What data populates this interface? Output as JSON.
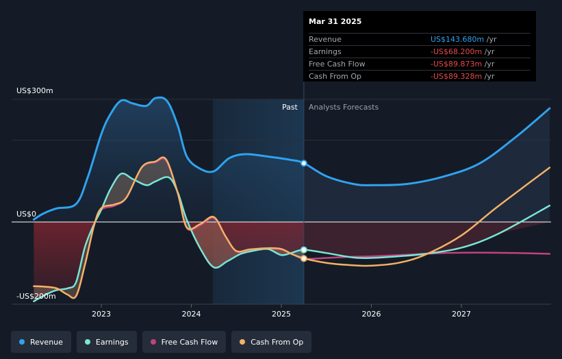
{
  "chart_data": {
    "type": "area",
    "y_unit_labels": [
      "US$300m",
      "US$0",
      "-US$200m"
    ],
    "ylim": [
      -200,
      300
    ],
    "xlim": [
      2022.25,
      2027.98
    ],
    "x_ticks": [
      {
        "value": 2023,
        "label": "2023"
      },
      {
        "value": 2024,
        "label": "2024"
      },
      {
        "value": 2025,
        "label": "2025"
      },
      {
        "value": 2026,
        "label": "2026"
      },
      {
        "value": 2027,
        "label": "2027"
      }
    ],
    "past_label": "Past",
    "forecast_label": "Analysts Forecasts",
    "past_start": 2024.24,
    "divider_x": 2025.25,
    "series": [
      {
        "name": "Revenue",
        "color": "#2fa3ef",
        "points": [
          [
            2022.25,
            6
          ],
          [
            2022.35,
            20
          ],
          [
            2022.5,
            33
          ],
          [
            2022.72,
            44
          ],
          [
            2022.85,
            110
          ],
          [
            2023.0,
            215
          ],
          [
            2023.1,
            263
          ],
          [
            2023.22,
            297
          ],
          [
            2023.35,
            290
          ],
          [
            2023.5,
            284
          ],
          [
            2023.6,
            303
          ],
          [
            2023.73,
            296
          ],
          [
            2023.85,
            235
          ],
          [
            2023.95,
            160
          ],
          [
            2024.1,
            130
          ],
          [
            2024.25,
            124
          ],
          [
            2024.42,
            156
          ],
          [
            2024.6,
            166
          ],
          [
            2024.85,
            160
          ],
          [
            2025.1,
            152
          ],
          [
            2025.25,
            144
          ],
          [
            2025.5,
            112
          ],
          [
            2025.8,
            93
          ],
          [
            2026.0,
            90
          ],
          [
            2026.4,
            93
          ],
          [
            2026.8,
            111
          ],
          [
            2027.2,
            143
          ],
          [
            2027.6,
            207
          ],
          [
            2027.98,
            278
          ]
        ]
      },
      {
        "name": "Earnings",
        "color": "#7ae5d6",
        "points": [
          [
            2022.25,
            -194
          ],
          [
            2022.38,
            -178
          ],
          [
            2022.5,
            -167
          ],
          [
            2022.63,
            -162
          ],
          [
            2022.72,
            -147
          ],
          [
            2022.82,
            -60
          ],
          [
            2022.92,
            -5
          ],
          [
            2023.0,
            30
          ],
          [
            2023.1,
            80
          ],
          [
            2023.22,
            118
          ],
          [
            2023.35,
            105
          ],
          [
            2023.5,
            90
          ],
          [
            2023.6,
            99
          ],
          [
            2023.75,
            109
          ],
          [
            2023.85,
            72
          ],
          [
            2023.95,
            5
          ],
          [
            2024.1,
            -65
          ],
          [
            2024.25,
            -111
          ],
          [
            2024.4,
            -96
          ],
          [
            2024.55,
            -78
          ],
          [
            2024.7,
            -70
          ],
          [
            2024.85,
            -66
          ],
          [
            2025.0,
            -81
          ],
          [
            2025.12,
            -75
          ],
          [
            2025.25,
            -68
          ],
          [
            2025.5,
            -76
          ],
          [
            2025.8,
            -87
          ],
          [
            2026.0,
            -88
          ],
          [
            2026.3,
            -84
          ],
          [
            2026.6,
            -78
          ],
          [
            2027.0,
            -63
          ],
          [
            2027.4,
            -30
          ],
          [
            2027.98,
            40
          ]
        ]
      },
      {
        "name": "Free Cash Flow",
        "color": "#c0437f",
        "points": [
          [
            2022.25,
            -157
          ],
          [
            2022.35,
            -158
          ],
          [
            2022.5,
            -162
          ],
          [
            2022.62,
            -177
          ],
          [
            2022.72,
            -181
          ],
          [
            2022.82,
            -103
          ],
          [
            2022.92,
            -8
          ],
          [
            2023.0,
            30
          ],
          [
            2023.15,
            40
          ],
          [
            2023.28,
            60
          ],
          [
            2023.45,
            133
          ],
          [
            2023.6,
            146
          ],
          [
            2023.72,
            150
          ],
          [
            2023.85,
            70
          ],
          [
            2023.95,
            -15
          ],
          [
            2024.1,
            -8
          ],
          [
            2024.25,
            9
          ],
          [
            2024.38,
            -35
          ],
          [
            2024.5,
            -72
          ],
          [
            2024.65,
            -70
          ],
          [
            2024.85,
            -66
          ],
          [
            2025.0,
            -67
          ],
          [
            2025.12,
            -78
          ],
          [
            2025.25,
            -90
          ],
          [
            2025.5,
            -88
          ],
          [
            2025.8,
            -85
          ],
          [
            2026.0,
            -84
          ],
          [
            2026.4,
            -80
          ],
          [
            2026.8,
            -76
          ],
          [
            2027.2,
            -75
          ],
          [
            2027.6,
            -76
          ],
          [
            2027.98,
            -78
          ]
        ]
      },
      {
        "name": "Cash From Op",
        "color": "#f2b266",
        "points": [
          [
            2022.25,
            -157
          ],
          [
            2022.35,
            -158
          ],
          [
            2022.5,
            -162
          ],
          [
            2022.62,
            -177
          ],
          [
            2022.72,
            -181
          ],
          [
            2022.82,
            -103
          ],
          [
            2022.92,
            -8
          ],
          [
            2023.0,
            34
          ],
          [
            2023.15,
            43
          ],
          [
            2023.28,
            60
          ],
          [
            2023.45,
            134
          ],
          [
            2023.6,
            148
          ],
          [
            2023.72,
            153
          ],
          [
            2023.85,
            70
          ],
          [
            2023.95,
            -13
          ],
          [
            2024.1,
            -5
          ],
          [
            2024.25,
            12
          ],
          [
            2024.38,
            -35
          ],
          [
            2024.5,
            -71
          ],
          [
            2024.65,
            -67
          ],
          [
            2024.85,
            -64
          ],
          [
            2025.0,
            -66
          ],
          [
            2025.12,
            -79
          ],
          [
            2025.25,
            -89
          ],
          [
            2025.5,
            -100
          ],
          [
            2025.8,
            -106
          ],
          [
            2026.0,
            -107
          ],
          [
            2026.3,
            -100
          ],
          [
            2026.6,
            -80
          ],
          [
            2027.0,
            -33
          ],
          [
            2027.4,
            37
          ],
          [
            2027.98,
            133
          ]
        ]
      }
    ],
    "highlight_points": [
      {
        "series": "Revenue",
        "x": 2025.25,
        "y": 143.68
      },
      {
        "series": "Earnings",
        "x": 2025.25,
        "y": -68.2
      },
      {
        "series": "Cash From Op",
        "x": 2025.25,
        "y": -89.33
      }
    ]
  },
  "tooltip": {
    "date": "Mar 31 2025",
    "unit": "/yr",
    "rows": [
      {
        "label": "Revenue",
        "value": "US$143.680m",
        "color": "#2fa3ef"
      },
      {
        "label": "Earnings",
        "value": "-US$68.200m",
        "color": "#e84a4a"
      },
      {
        "label": "Free Cash Flow",
        "value": "-US$89.873m",
        "color": "#e84a4a"
      },
      {
        "label": "Cash From Op",
        "value": "-US$89.328m",
        "color": "#e84a4a"
      }
    ]
  },
  "legend": [
    {
      "label": "Revenue",
      "color": "#2fa3ef"
    },
    {
      "label": "Earnings",
      "color": "#7ae5d6"
    },
    {
      "label": "Free Cash Flow",
      "color": "#c0437f"
    },
    {
      "label": "Cash From Op",
      "color": "#f2b266"
    }
  ]
}
